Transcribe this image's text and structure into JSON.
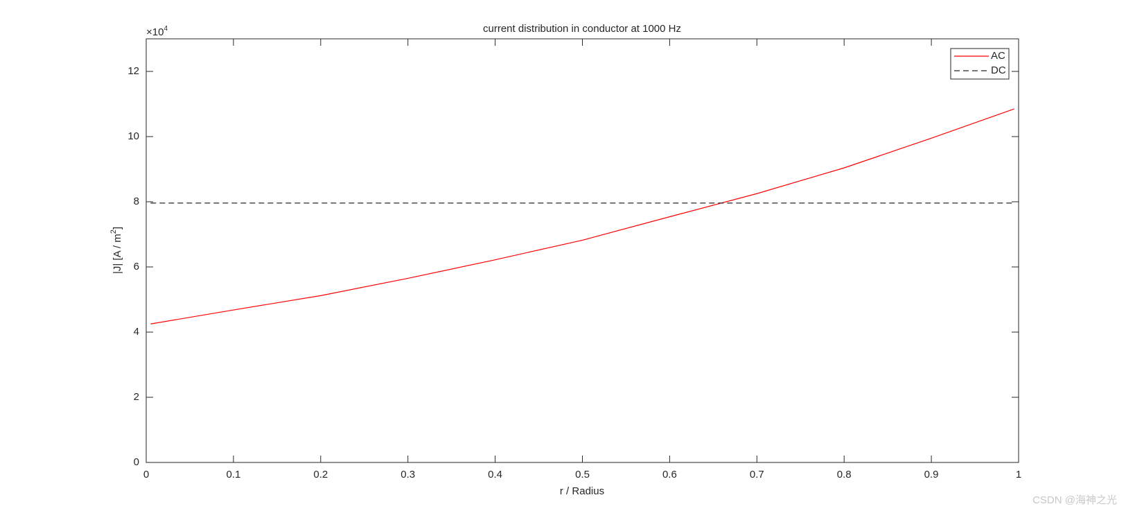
{
  "chart_data": {
    "type": "line",
    "title": "current distribution in conductor at 1000 Hz",
    "x_label": "r / Radius",
    "y_label": {
      "before": "|J|  [A / m",
      "sup": "2",
      "after": "]"
    },
    "y_exponent": {
      "base": "×10",
      "power": "4"
    },
    "x": [
      0.005,
      0.1,
      0.2,
      0.3,
      0.4,
      0.5,
      0.6,
      0.7,
      0.8,
      0.9,
      0.995
    ],
    "series": [
      {
        "name": "AC",
        "color": "#ff0000",
        "dash": false,
        "values": [
          4.25,
          4.68,
          5.12,
          5.65,
          6.22,
          6.82,
          7.54,
          8.25,
          9.04,
          9.95,
          10.85
        ]
      },
      {
        "name": "DC",
        "color": "#262626",
        "dash": true,
        "values": [
          7.96,
          7.96,
          7.96,
          7.96,
          7.96,
          7.96,
          7.96,
          7.96,
          7.96,
          7.96,
          7.96
        ]
      }
    ],
    "xlim": [
      0,
      1
    ],
    "xticks": [
      0,
      0.1,
      0.2,
      0.3,
      0.4,
      0.5,
      0.6,
      0.7,
      0.8,
      0.9,
      1
    ],
    "ylim": [
      0,
      13
    ],
    "yticks": [
      0,
      2,
      4,
      6,
      8,
      10,
      12
    ],
    "grid": false,
    "legend": "northeast",
    "watermark": "CSDN @海神之光"
  }
}
